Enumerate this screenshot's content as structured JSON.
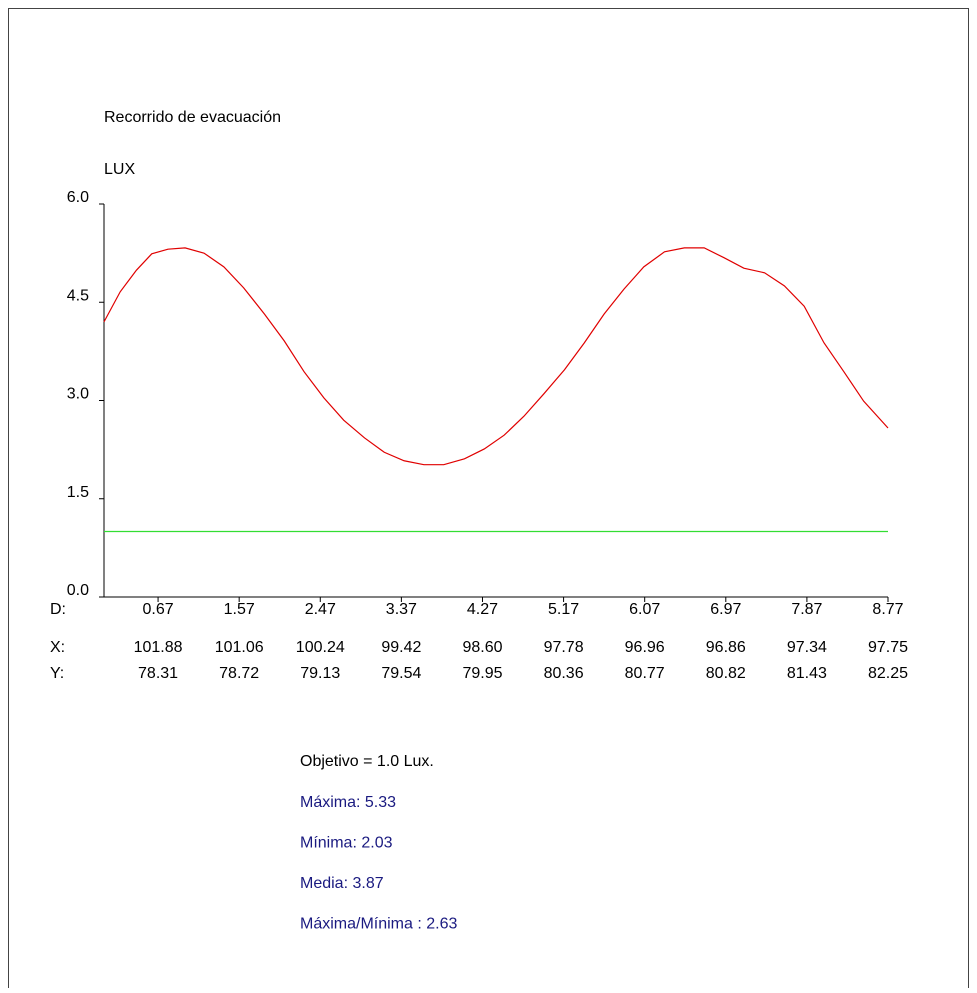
{
  "chart_data": {
    "type": "line",
    "title": "Recorrido de evacuación",
    "y_label": "LUX",
    "x_label": "D:",
    "xlim": [
      0.07,
      8.77
    ],
    "ylim": [
      0,
      6
    ],
    "xticks": [
      0.67,
      1.57,
      2.47,
      3.37,
      4.27,
      5.17,
      6.07,
      6.97,
      7.87,
      8.77
    ],
    "yticks": [
      {
        "value": 0,
        "label": "0.0"
      },
      1.5,
      {
        "value": 3,
        "label": "3.0"
      },
      4.5,
      {
        "value": 6,
        "label": "6.0"
      }
    ],
    "series": [
      {
        "color": "#e00000",
        "x": [
          0.07,
          0.25,
          0.43,
          0.6,
          0.78,
          0.97,
          1.18,
          1.4,
          1.62,
          1.85,
          2.07,
          2.29,
          2.51,
          2.73,
          2.96,
          3.18,
          3.4,
          3.62,
          3.84,
          4.07,
          4.29,
          4.51,
          4.73,
          4.95,
          5.18,
          5.4,
          5.62,
          5.84,
          6.06,
          6.29,
          6.51,
          6.73,
          6.95,
          7.17,
          7.4,
          7.62,
          7.84,
          8.06,
          8.28,
          8.5,
          8.77
        ],
        "values": [
          4.2,
          4.66,
          4.99,
          5.24,
          5.31,
          5.33,
          5.25,
          5.04,
          4.72,
          4.32,
          3.91,
          3.44,
          3.04,
          2.7,
          2.43,
          2.21,
          2.08,
          2.02,
          2.02,
          2.11,
          2.26,
          2.47,
          2.76,
          3.1,
          3.47,
          3.88,
          4.32,
          4.7,
          5.04,
          5.27,
          5.33,
          5.33,
          5.18,
          5.02,
          4.95,
          4.75,
          4.44,
          3.88,
          3.44,
          2.99,
          2.58
        ]
      },
      {
        "color": "#33dd33",
        "x": [
          0.07,
          8.77
        ],
        "values": [
          1,
          1
        ]
      }
    ],
    "coordinate_rows": [
      {
        "label": "X:",
        "values": [
          "101.88",
          "101.06",
          "100.24",
          "99.42",
          "98.60",
          "97.78",
          "96.96",
          "96.86",
          "97.34",
          "97.75"
        ]
      },
      {
        "label": "Y:",
        "values": [
          "78.31",
          "78.72",
          "79.13",
          "79.54",
          "79.95",
          "80.36",
          "80.77",
          "80.82",
          "81.43",
          "82.25"
        ]
      }
    ],
    "objective": "Objetivo = 1.0 Lux.",
    "stats": [
      "Máxima: 5.33",
      "Mínima: 2.03",
      "Media: 3.87",
      "Máxima/Mínima : 2.63"
    ],
    "stats_color": "#1a1a80"
  }
}
